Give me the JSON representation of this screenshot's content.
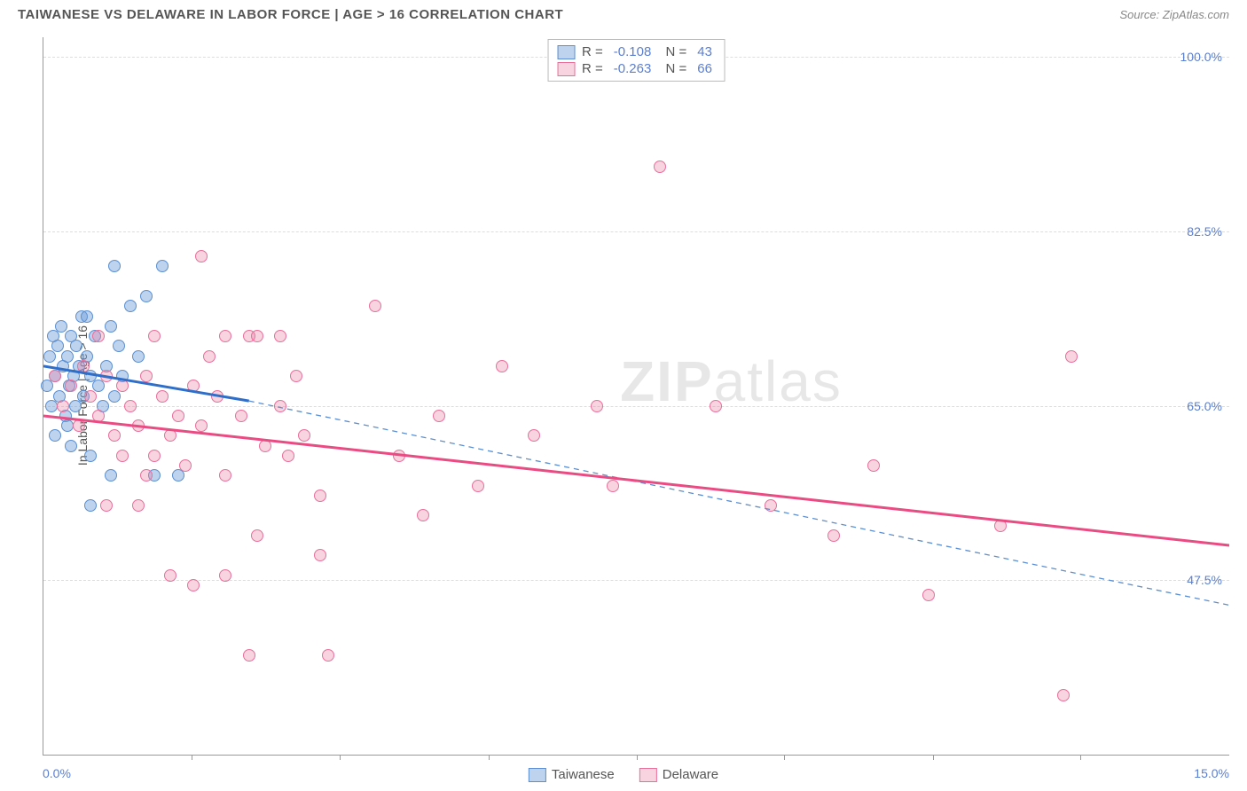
{
  "header": {
    "title": "TAIWANESE VS DELAWARE IN LABOR FORCE | AGE > 16 CORRELATION CHART",
    "source": "Source: ZipAtlas.com"
  },
  "chart": {
    "type": "scatter",
    "ylabel": "In Labor Force | Age > 16",
    "xlim": [
      0,
      15
    ],
    "ylim": [
      30,
      102
    ],
    "x_min_label": "0.0%",
    "x_max_label": "15.0%",
    "ytick_values": [
      47.5,
      65.0,
      82.5,
      100.0
    ],
    "ytick_labels": [
      "47.5%",
      "65.0%",
      "82.5%",
      "100.0%"
    ],
    "xtick_values": [
      1.87,
      3.75,
      5.63,
      7.5,
      9.37,
      11.25,
      13.12
    ],
    "background_color": "#ffffff",
    "grid_color": "#dddddd",
    "watermark": "ZIPatlas",
    "series": [
      {
        "name": "Taiwanese",
        "marker_color_fill": "rgba(109,158,217,0.45)",
        "marker_color_stroke": "#5b8fd1",
        "marker_size": 14,
        "R": "-0.108",
        "N": "43",
        "line_solid": {
          "x1": 0,
          "y1": 69,
          "x2": 2.6,
          "y2": 65.5,
          "color": "#2f6fc9",
          "width": 3
        },
        "line_dashed": {
          "x1": 2.6,
          "y1": 65.5,
          "x2": 15,
          "y2": 45,
          "color": "#5b8fd1",
          "width": 1.3
        },
        "points": [
          [
            0.05,
            67
          ],
          [
            0.08,
            70
          ],
          [
            0.1,
            65
          ],
          [
            0.12,
            72
          ],
          [
            0.15,
            68
          ],
          [
            0.18,
            71
          ],
          [
            0.2,
            66
          ],
          [
            0.22,
            73
          ],
          [
            0.25,
            69
          ],
          [
            0.28,
            64
          ],
          [
            0.3,
            70
          ],
          [
            0.33,
            67
          ],
          [
            0.35,
            72
          ],
          [
            0.38,
            68
          ],
          [
            0.4,
            65
          ],
          [
            0.42,
            71
          ],
          [
            0.45,
            69
          ],
          [
            0.48,
            74
          ],
          [
            0.5,
            66
          ],
          [
            0.55,
            70
          ],
          [
            0.6,
            68
          ],
          [
            0.65,
            72
          ],
          [
            0.7,
            67
          ],
          [
            0.75,
            65
          ],
          [
            0.8,
            69
          ],
          [
            0.85,
            73
          ],
          [
            0.9,
            66
          ],
          [
            0.95,
            71
          ],
          [
            1.0,
            68
          ],
          [
            1.1,
            75
          ],
          [
            1.2,
            70
          ],
          [
            1.3,
            76
          ],
          [
            0.9,
            79
          ],
          [
            1.5,
            79
          ],
          [
            0.55,
            74
          ],
          [
            0.15,
            62
          ],
          [
            0.3,
            63
          ],
          [
            0.35,
            61
          ],
          [
            0.6,
            60
          ],
          [
            0.85,
            58
          ],
          [
            0.6,
            55
          ],
          [
            1.4,
            58
          ],
          [
            1.7,
            58
          ]
        ]
      },
      {
        "name": "Delaware",
        "marker_color_fill": "rgba(235,130,165,0.35)",
        "marker_color_stroke": "#e86f9a",
        "marker_size": 14,
        "R": "-0.263",
        "N": "66",
        "line_solid": {
          "x1": 0,
          "y1": 64,
          "x2": 15,
          "y2": 51,
          "color": "#e94b82",
          "width": 3
        },
        "points": [
          [
            0.15,
            68
          ],
          [
            0.25,
            65
          ],
          [
            0.35,
            67
          ],
          [
            0.45,
            63
          ],
          [
            0.5,
            69
          ],
          [
            0.6,
            66
          ],
          [
            0.7,
            64
          ],
          [
            0.8,
            68
          ],
          [
            0.9,
            62
          ],
          [
            1.0,
            67
          ],
          [
            1.1,
            65
          ],
          [
            1.2,
            63
          ],
          [
            1.3,
            68
          ],
          [
            1.4,
            60
          ],
          [
            1.5,
            66
          ],
          [
            1.6,
            62
          ],
          [
            1.7,
            64
          ],
          [
            1.8,
            59
          ],
          [
            1.9,
            67
          ],
          [
            2.0,
            63
          ],
          [
            2.1,
            70
          ],
          [
            2.2,
            66
          ],
          [
            2.3,
            58
          ],
          [
            2.5,
            64
          ],
          [
            2.6,
            72
          ],
          [
            2.8,
            61
          ],
          [
            3.0,
            65
          ],
          [
            3.1,
            60
          ],
          [
            3.3,
            62
          ],
          [
            3.5,
            56
          ],
          [
            2.0,
            80
          ],
          [
            2.3,
            72
          ],
          [
            2.7,
            72
          ],
          [
            3.0,
            72
          ],
          [
            4.2,
            75
          ],
          [
            4.5,
            60
          ],
          [
            4.8,
            54
          ],
          [
            5.0,
            64
          ],
          [
            5.5,
            57
          ],
          [
            5.8,
            69
          ],
          [
            6.2,
            62
          ],
          [
            7.0,
            65
          ],
          [
            7.2,
            57
          ],
          [
            7.8,
            89
          ],
          [
            8.5,
            65
          ],
          [
            9.2,
            55
          ],
          [
            10.0,
            52
          ],
          [
            10.5,
            59
          ],
          [
            11.2,
            46
          ],
          [
            12.1,
            53
          ],
          [
            13.0,
            70
          ],
          [
            0.8,
            55
          ],
          [
            1.2,
            55
          ],
          [
            3.5,
            50
          ],
          [
            2.6,
            40
          ],
          [
            3.6,
            40
          ],
          [
            1.6,
            48
          ],
          [
            1.9,
            47
          ],
          [
            2.3,
            48
          ],
          [
            2.7,
            52
          ],
          [
            0.7,
            72
          ],
          [
            1.4,
            72
          ],
          [
            12.9,
            36
          ],
          [
            1.0,
            60
          ],
          [
            1.3,
            58
          ],
          [
            3.2,
            68
          ]
        ]
      }
    ],
    "legend_top": [
      {
        "swatch_fill": "rgba(109,158,217,0.45)",
        "swatch_stroke": "#5b8fd1"
      },
      {
        "swatch_fill": "rgba(235,130,165,0.35)",
        "swatch_stroke": "#e86f9a"
      }
    ],
    "legend_bottom": [
      {
        "label": "Taiwanese",
        "swatch_fill": "rgba(109,158,217,0.45)",
        "swatch_stroke": "#5b8fd1"
      },
      {
        "label": "Delaware",
        "swatch_fill": "rgba(235,130,165,0.35)",
        "swatch_stroke": "#e86f9a"
      }
    ]
  }
}
